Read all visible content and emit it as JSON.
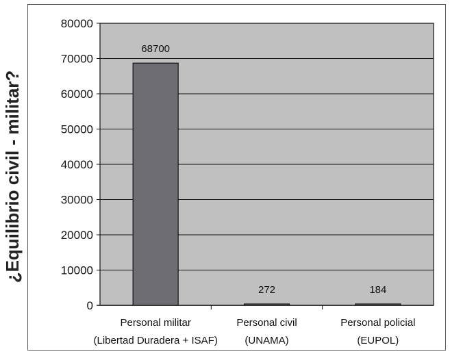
{
  "chart_data": {
    "type": "bar",
    "title": "",
    "ylabel": "¿Equilibrio civil - militar?",
    "xlabel": "",
    "ylim": [
      0,
      80000
    ],
    "yticks": [
      0,
      10000,
      20000,
      30000,
      40000,
      50000,
      60000,
      70000,
      80000
    ],
    "grid": true,
    "categories": [
      [
        "Personal militar",
        "(Libertad Duradera + ISAF)"
      ],
      [
        "Personal civil",
        "(UNAMA)"
      ],
      [
        "Personal policial",
        "(EUPOL)"
      ]
    ],
    "values": [
      68700,
      272,
      184
    ],
    "data_labels": [
      "68700",
      "272",
      "184"
    ]
  },
  "colors": {
    "plot_background": "#c0c0c0",
    "bar_fill": "#6d6d72",
    "grid": "#111111"
  }
}
